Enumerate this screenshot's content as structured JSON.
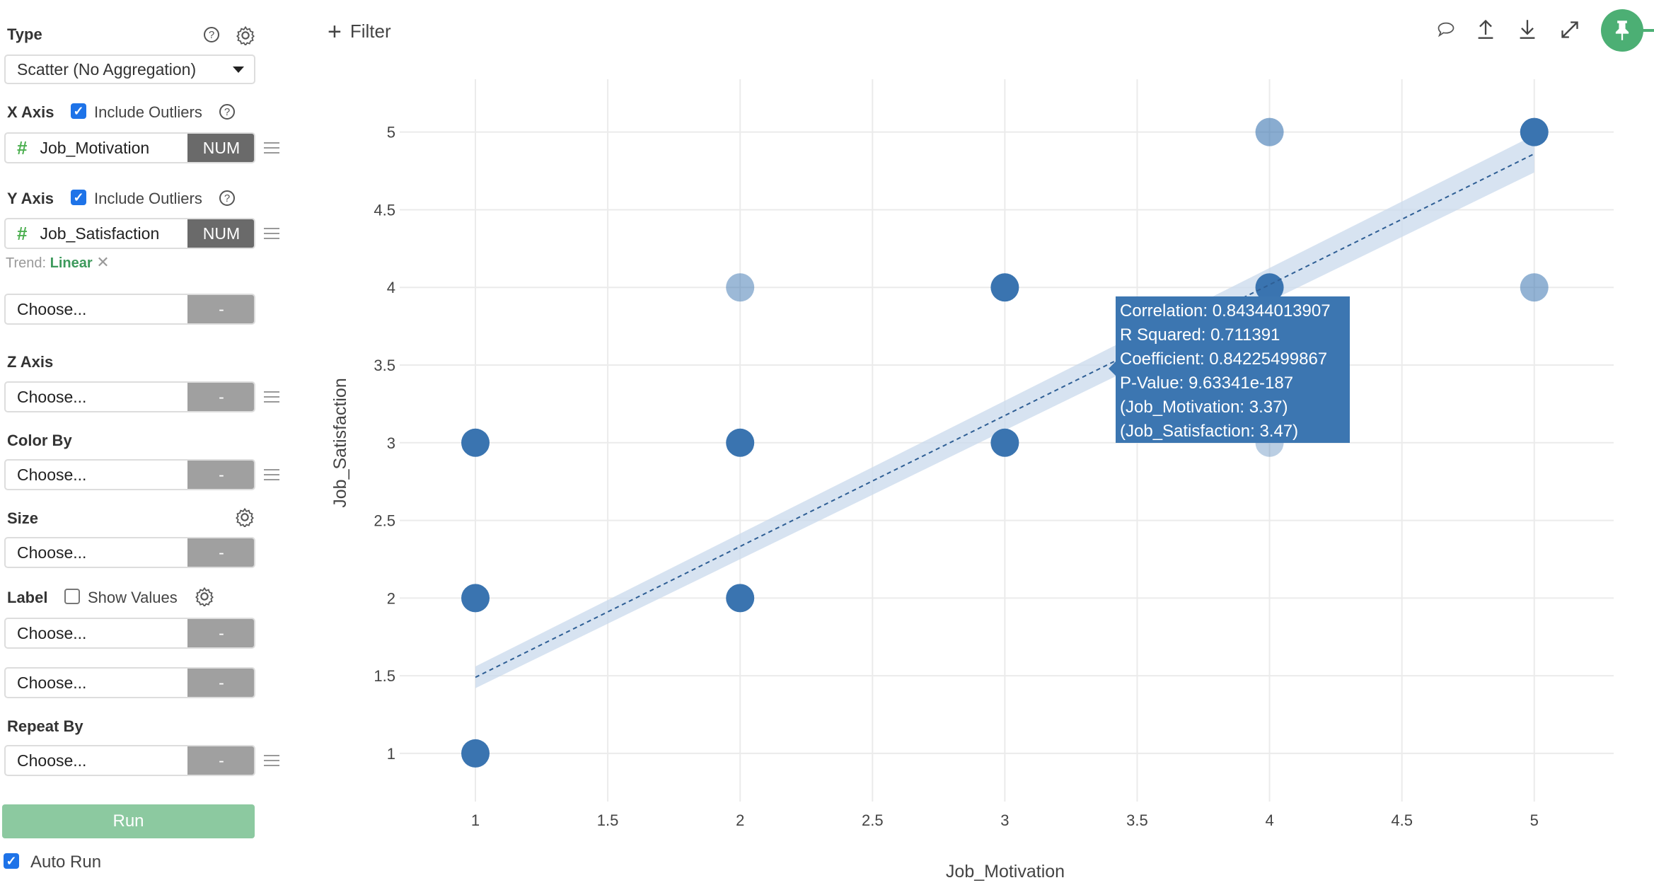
{
  "sidebar": {
    "type_label": "Type",
    "type_value": "Scatter (No Aggregation)",
    "x_axis_label": "X Axis",
    "x_include_outliers": "Include Outliers",
    "x_field": "Job_Motivation",
    "x_field_type": "NUM",
    "y_axis_label": "Y Axis",
    "y_include_outliers": "Include Outliers",
    "y_field": "Job_Satisfaction",
    "y_field_type": "NUM",
    "trend_label": "Trend:",
    "trend_value": "Linear",
    "y2_placeholder": "Choose...",
    "z_axis_label": "Z Axis",
    "z_placeholder": "Choose...",
    "color_by_label": "Color By",
    "color_placeholder": "Choose...",
    "size_label": "Size",
    "size_placeholder": "Choose...",
    "label_label": "Label",
    "show_values": "Show Values",
    "label_placeholder": "Choose...",
    "label2_placeholder": "Choose...",
    "repeat_by_label": "Repeat By",
    "repeat_placeholder": "Choose...",
    "dash": "-",
    "run_label": "Run",
    "auto_run_label": "Auto Run",
    "hash": "#",
    "help": "?"
  },
  "toolbar": {
    "filter_label": "Filter",
    "plus": "+"
  },
  "colors": {
    "accent": "#4caf74",
    "point": "#3a74b0",
    "run": "#8cc9a0"
  },
  "tooltip": {
    "lines": [
      "Correlation: 0.84344013907",
      "R Squared: 0.711391",
      "Coefficient: 0.84225499867",
      "P-Value: 9.63341e-187",
      "(Job_Motivation: 3.37)",
      "(Job_Satisfaction: 3.47)"
    ]
  },
  "chart_data": {
    "type": "scatter",
    "xlabel": "Job_Motivation",
    "ylabel": "Job_Satisfaction",
    "xlim": [
      0.714,
      5.3
    ],
    "ylim": [
      0.69,
      5.34
    ],
    "xticks": [
      1,
      1.5,
      2,
      2.5,
      3,
      3.5,
      4,
      4.5,
      5
    ],
    "xtick_labels": [
      "1",
      "1.5",
      "2",
      "2.5",
      "3",
      "3.5",
      "4",
      "4.5",
      "5"
    ],
    "yticks": [
      1,
      1.5,
      2,
      2.5,
      3,
      3.5,
      4,
      4.5,
      5
    ],
    "ytick_labels": [
      "1",
      "1.5",
      "2",
      "2.5",
      "3",
      "3.5",
      "4",
      "4.5",
      "5"
    ],
    "grid": true,
    "points": [
      {
        "x": 1,
        "y": 1,
        "opacity": 1
      },
      {
        "x": 1,
        "y": 2,
        "opacity": 1
      },
      {
        "x": 1,
        "y": 3,
        "opacity": 1
      },
      {
        "x": 2,
        "y": 2,
        "opacity": 1
      },
      {
        "x": 2,
        "y": 3,
        "opacity": 1
      },
      {
        "x": 2,
        "y": 4,
        "opacity": 0.5
      },
      {
        "x": 3,
        "y": 3,
        "opacity": 1
      },
      {
        "x": 3,
        "y": 4,
        "opacity": 1
      },
      {
        "x": 4,
        "y": 3,
        "opacity": 0.35
      },
      {
        "x": 4,
        "y": 4,
        "opacity": 1
      },
      {
        "x": 4,
        "y": 5,
        "opacity": 0.6
      },
      {
        "x": 5,
        "y": 4,
        "opacity": 0.55
      },
      {
        "x": 5,
        "y": 5,
        "opacity": 1
      }
    ],
    "trend": {
      "type": "linear",
      "x": [
        1,
        5
      ],
      "y": [
        1.49,
        4.86
      ],
      "band": 0.07
    }
  }
}
